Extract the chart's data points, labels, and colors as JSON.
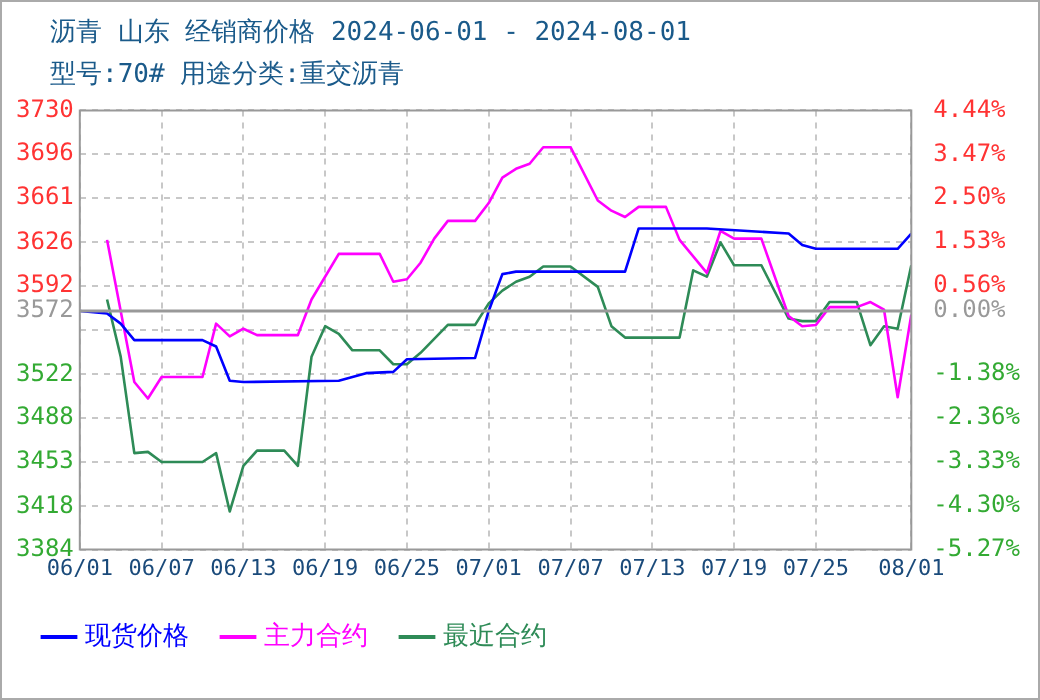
{
  "chart_data": {
    "type": "line",
    "title": "沥青  山东 经销商价格 2024-06-01 - 2024-08-01",
    "subtitle": "型号:70# 用途分类:重交沥青",
    "xlim": [
      "2024-06-01",
      "2024-08-01"
    ],
    "xticks": [
      {
        "value": "2024-06-01",
        "label": "06/01"
      },
      {
        "value": "2024-06-07",
        "label": "06/07"
      },
      {
        "value": "2024-06-13",
        "label": "06/13"
      },
      {
        "value": "2024-06-19",
        "label": "06/19"
      },
      {
        "value": "2024-06-25",
        "label": "06/25"
      },
      {
        "value": "2024-07-01",
        "label": "07/01"
      },
      {
        "value": "2024-07-07",
        "label": "07/07"
      },
      {
        "value": "2024-07-13",
        "label": "07/13"
      },
      {
        "value": "2024-07-19",
        "label": "07/19"
      },
      {
        "value": "2024-07-25",
        "label": "07/25"
      },
      {
        "value": "2024-08-01",
        "label": "08/01"
      }
    ],
    "ylim": [
      3384,
      3730
    ],
    "yticks": [
      3730,
      3696,
      3661,
      3626,
      3592,
      3572,
      {
        "value": 3557,
        "label": null
      },
      3522,
      3488,
      3453,
      3418,
      3384
    ],
    "y2lim": [
      -5.27,
      4.44
    ],
    "y2ticks": [
      {
        "value": 4.44,
        "label": "4.44%"
      },
      {
        "value": 3.47,
        "label": "3.47%"
      },
      {
        "value": 2.5,
        "label": "2.50%"
      },
      {
        "value": 1.53,
        "label": "1.53%"
      },
      {
        "value": 0.56,
        "label": "0.56%"
      },
      {
        "value": 0,
        "label": "0.00%"
      },
      {
        "value": -1.38,
        "label": "-1.38%"
      },
      {
        "value": -2.36,
        "label": "-2.36%"
      },
      {
        "value": -3.33,
        "label": "-3.33%"
      },
      {
        "value": -4.3,
        "label": "-4.30%"
      },
      {
        "value": -5.27,
        "label": "-5.27%"
      }
    ],
    "ref_lines": [
      {
        "axis": "y",
        "value": 3572,
        "color": "#999999"
      }
    ],
    "grid": true,
    "legend": "bottom",
    "marker": "none",
    "line_style": "solid",
    "series": [
      {
        "name": "现货价格",
        "color": "#0000ff",
        "x": [
          "2024-06-01",
          "2024-06-03",
          "2024-06-04",
          "2024-06-05",
          "2024-06-10",
          "2024-06-11",
          "2024-06-12",
          "2024-06-13",
          "2024-06-20",
          "2024-06-22",
          "2024-06-24",
          "2024-06-25",
          "2024-06-30",
          "2024-07-01",
          "2024-07-02",
          "2024-07-03",
          "2024-07-11",
          "2024-07-12",
          "2024-07-17",
          "2024-07-23",
          "2024-07-24",
          "2024-07-25",
          "2024-07-31",
          "2024-08-01"
        ],
        "values": [
          3572,
          3570,
          3562,
          3549,
          3549,
          3544,
          3517,
          3516,
          3517,
          3523,
          3524,
          3534,
          3535,
          3572,
          3601,
          3603,
          3603,
          3637,
          3637,
          3633,
          3624,
          3621,
          3621,
          3633
        ]
      },
      {
        "name": "主力合约",
        "color": "#ff00ff",
        "x": [
          "2024-06-03",
          "2024-06-05",
          "2024-06-06",
          "2024-06-07",
          "2024-06-10",
          "2024-06-11",
          "2024-06-12",
          "2024-06-13",
          "2024-06-14",
          "2024-06-17",
          "2024-06-18",
          "2024-06-20",
          "2024-06-23",
          "2024-06-24",
          "2024-06-25",
          "2024-06-26",
          "2024-06-27",
          "2024-06-28",
          "2024-06-30",
          "2024-07-01",
          "2024-07-02",
          "2024-07-03",
          "2024-07-04",
          "2024-07-05",
          "2024-07-07",
          "2024-07-09",
          "2024-07-10",
          "2024-07-11",
          "2024-07-12",
          "2024-07-14",
          "2024-07-15",
          "2024-07-17",
          "2024-07-18",
          "2024-07-19",
          "2024-07-21",
          "2024-07-23",
          "2024-07-24",
          "2024-07-25",
          "2024-07-26",
          "2024-07-28",
          "2024-07-29",
          "2024-07-30",
          "2024-07-31",
          "2024-08-01"
        ],
        "values": [
          3628,
          3516,
          3503,
          3520,
          3520,
          3562,
          3552,
          3558,
          3553,
          3553,
          3581,
          3617,
          3617,
          3595,
          3597,
          3610,
          3629,
          3643,
          3643,
          3657,
          3677,
          3684,
          3688,
          3701,
          3701,
          3659,
          3651,
          3646,
          3654,
          3654,
          3628,
          3602,
          3635,
          3629,
          3629,
          3568,
          3560,
          3561,
          3575,
          3575,
          3579,
          3573,
          3504,
          3569
        ]
      },
      {
        "name": "最近合约",
        "color": "#2e8b57",
        "x": [
          "2024-06-03",
          "2024-06-04",
          "2024-06-05",
          "2024-06-06",
          "2024-06-07",
          "2024-06-10",
          "2024-06-11",
          "2024-06-12",
          "2024-06-13",
          "2024-06-14",
          "2024-06-16",
          "2024-06-17",
          "2024-06-18",
          "2024-06-19",
          "2024-06-20",
          "2024-06-21",
          "2024-06-23",
          "2024-06-24",
          "2024-06-25",
          "2024-06-26",
          "2024-06-28",
          "2024-06-30",
          "2024-07-01",
          "2024-07-02",
          "2024-07-03",
          "2024-07-04",
          "2024-07-05",
          "2024-07-07",
          "2024-07-09",
          "2024-07-10",
          "2024-07-11",
          "2024-07-15",
          "2024-07-16",
          "2024-07-17",
          "2024-07-18",
          "2024-07-19",
          "2024-07-21",
          "2024-07-23",
          "2024-07-24",
          "2024-07-25",
          "2024-07-26",
          "2024-07-28",
          "2024-07-29",
          "2024-07-30",
          "2024-07-31",
          "2024-08-01"
        ],
        "values": [
          3581,
          3536,
          3460,
          3461,
          3453,
          3453,
          3460,
          3414,
          3450,
          3462,
          3462,
          3450,
          3536,
          3560,
          3554,
          3541,
          3541,
          3530,
          3530,
          3539,
          3561,
          3561,
          3578,
          3588,
          3595,
          3599,
          3607,
          3607,
          3591,
          3560,
          3551,
          3551,
          3604,
          3599,
          3626,
          3608,
          3608,
          3566,
          3564,
          3564,
          3579,
          3579,
          3545,
          3560,
          3558,
          3608
        ]
      }
    ]
  }
}
